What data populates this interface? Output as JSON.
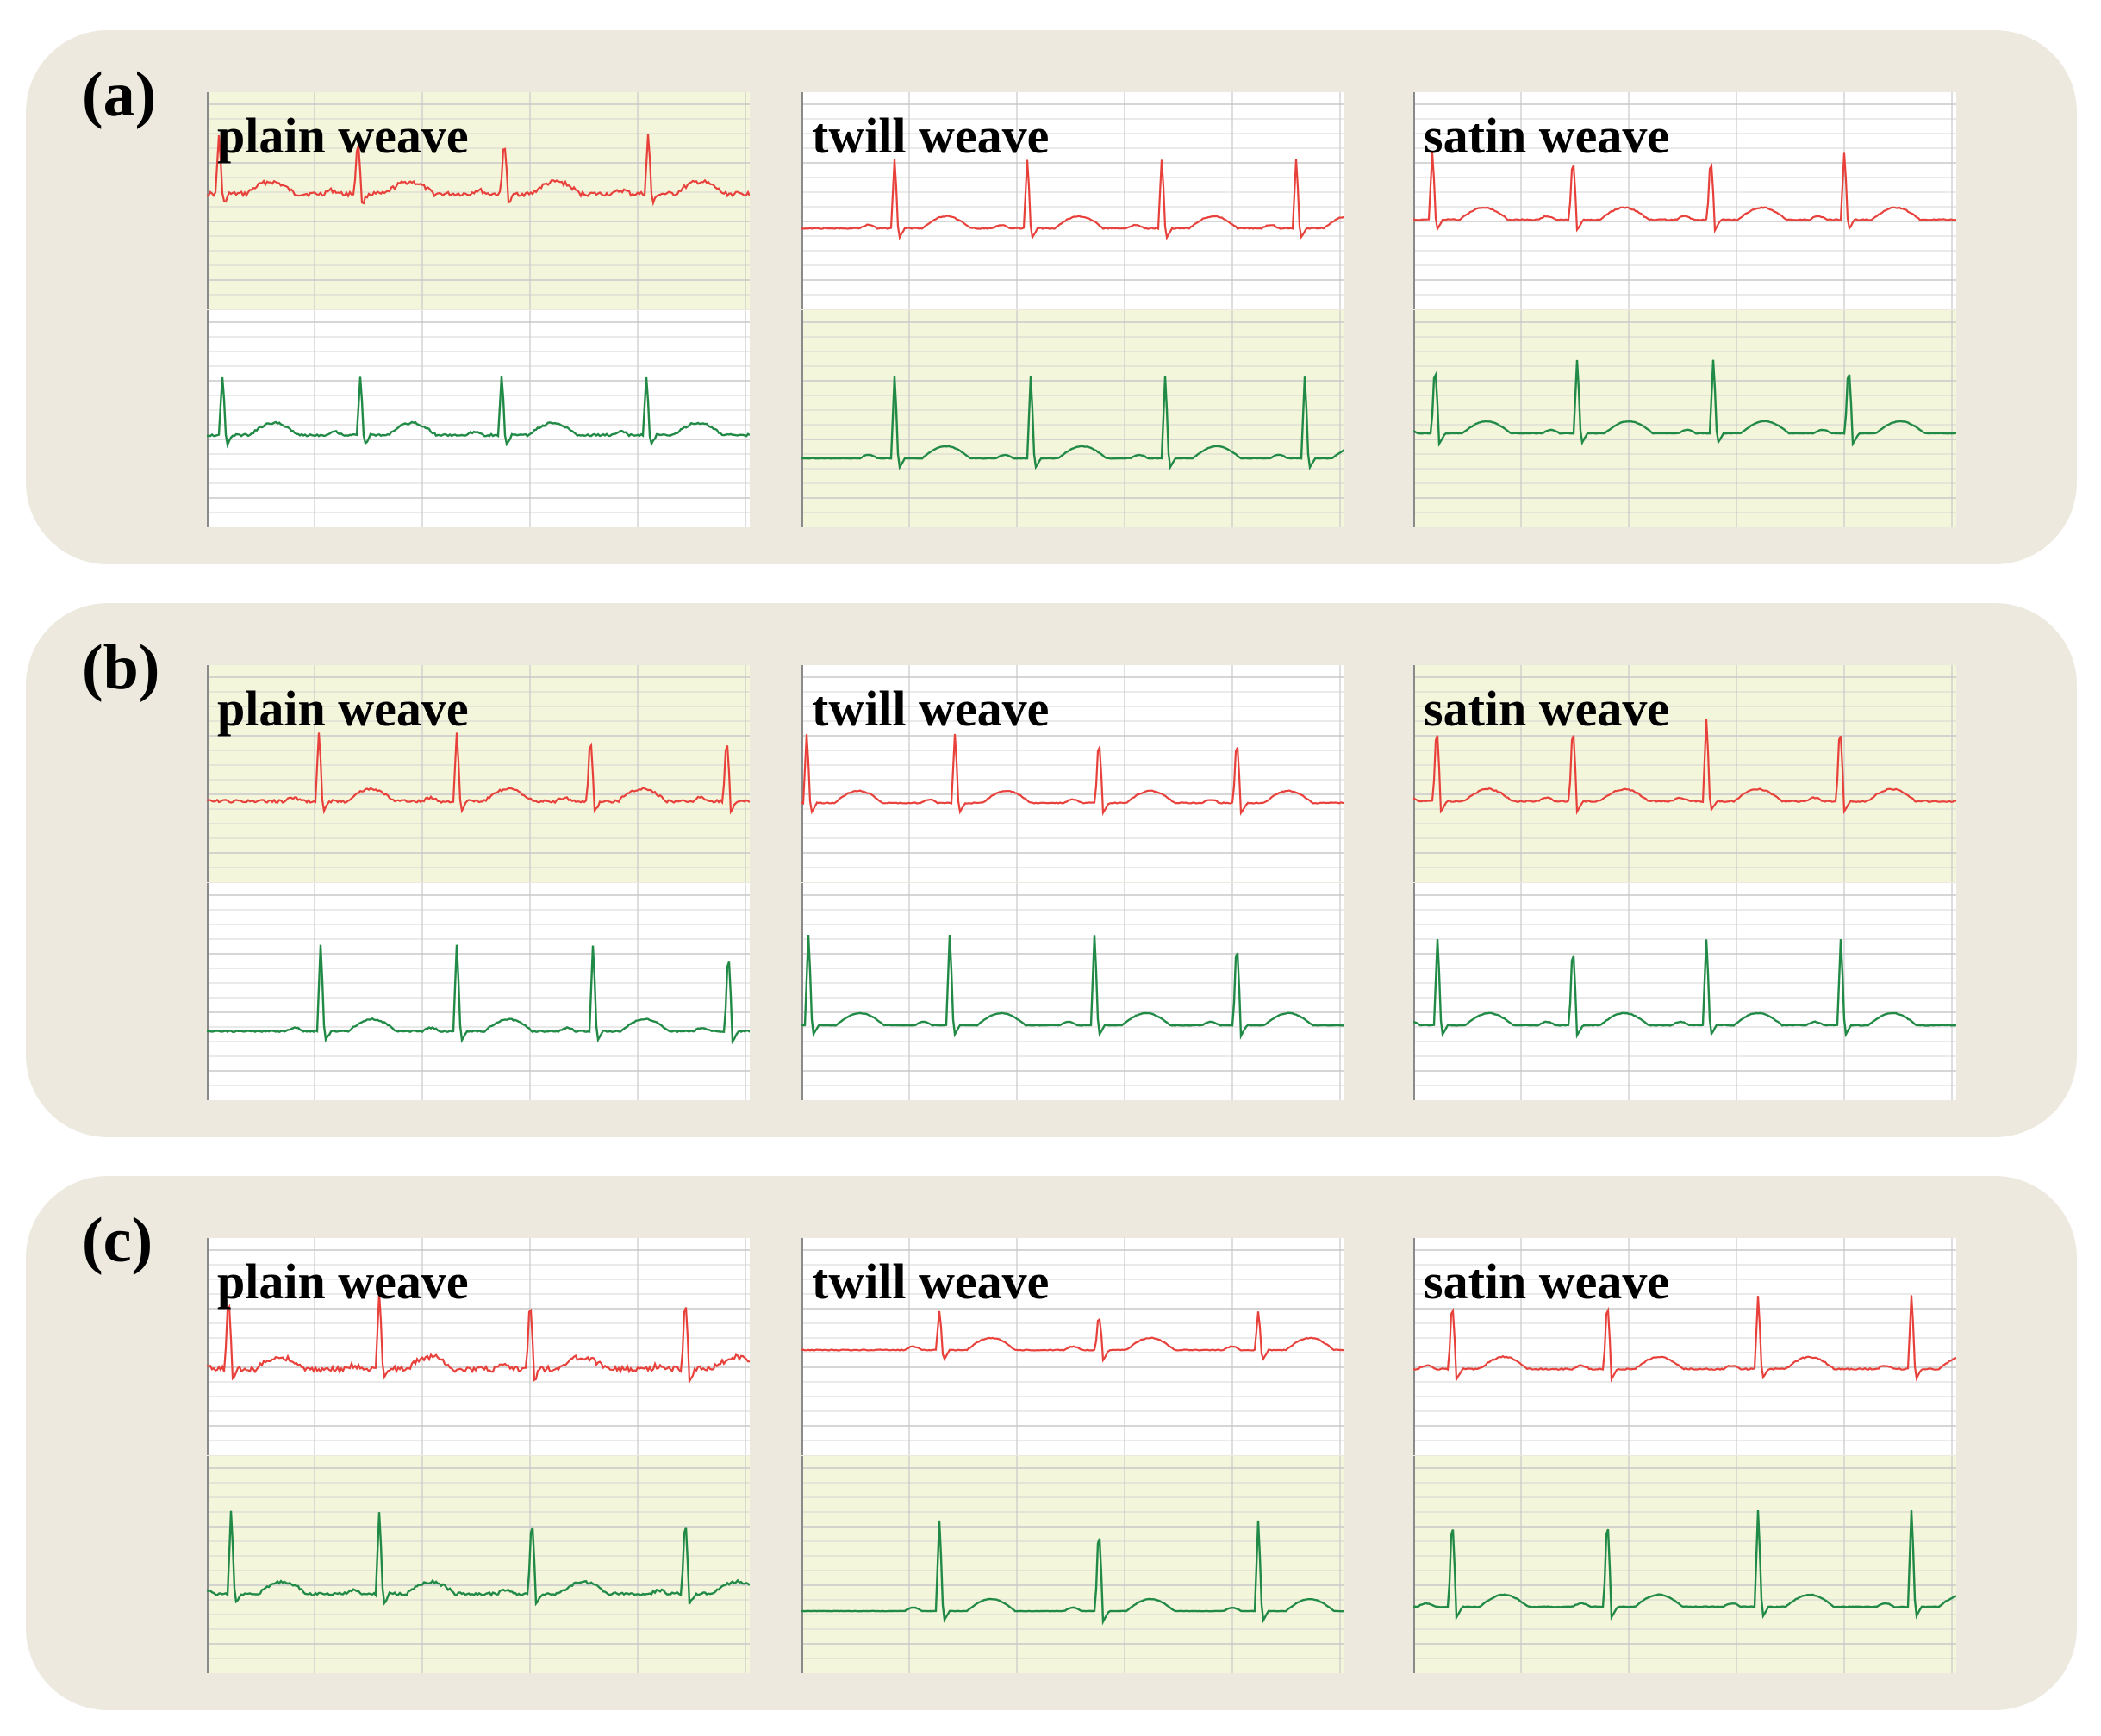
{
  "figure": {
    "groups": [
      {
        "label": "(a)",
        "panels": [
          {
            "label": "plain weave",
            "red_bg": "yellow",
            "green_bg": "white"
          },
          {
            "label": "twill weave",
            "red_bg": "white",
            "green_bg": "yellow"
          },
          {
            "label": "satin weave",
            "red_bg": "white",
            "green_bg": "yellow"
          }
        ]
      },
      {
        "label": "(b)",
        "panels": [
          {
            "label": "plain weave",
            "red_bg": "yellow",
            "green_bg": "white"
          },
          {
            "label": "twill weave",
            "red_bg": "white",
            "green_bg": "white"
          },
          {
            "label": "satin weave",
            "red_bg": "yellow",
            "green_bg": "white"
          }
        ]
      },
      {
        "label": "(c)",
        "panels": [
          {
            "label": "plain weave",
            "red_bg": "white",
            "green_bg": "yellow"
          },
          {
            "label": "twill weave",
            "red_bg": "white",
            "green_bg": "yellow"
          },
          {
            "label": "satin weave",
            "red_bg": "white",
            "green_bg": "yellow"
          }
        ]
      }
    ]
  },
  "colors": {
    "group_background": "#ede9de",
    "panel_yellow": "#f4f6dc",
    "panel_white": "#ffffff",
    "trace_red": "#e8403a",
    "trace_green": "#218a46",
    "grid": "#c8c8c8"
  }
}
